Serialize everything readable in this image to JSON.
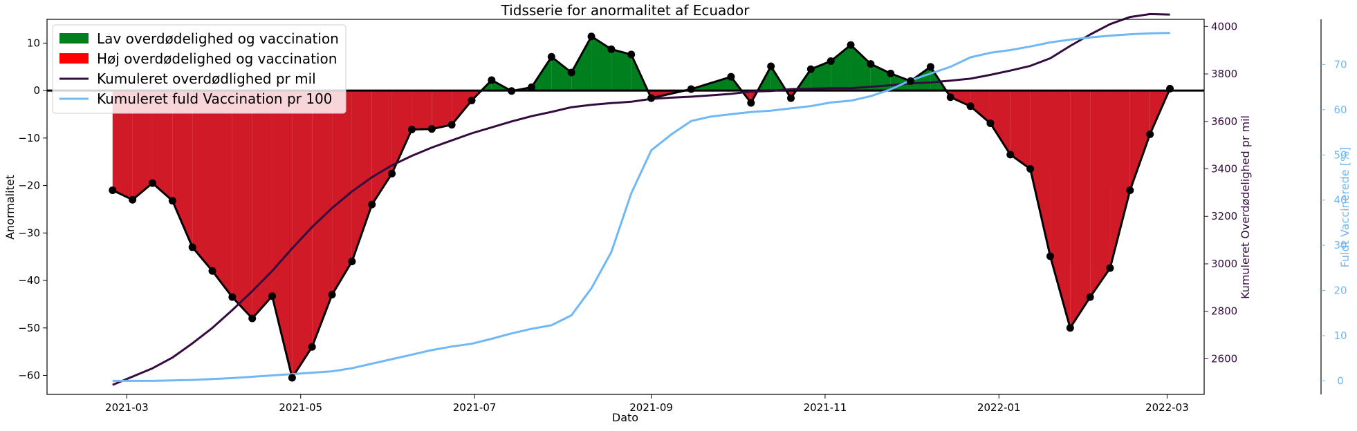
{
  "chart_data": {
    "type": "area",
    "title": "Tidsserie for anormalitet af Ecuador",
    "xlabel": "Dato",
    "ylabel": "Anormalitet",
    "ylabel_right1": "Kumuleret Overdødelighed pr mil",
    "ylabel_right2": "Fuldt Vaccinerede [%]",
    "xlim": [
      "2021-02-01",
      "2022-03-14"
    ],
    "ylim": [
      -64,
      15
    ],
    "ylim_right1": [
      2450,
      4030
    ],
    "ylim_right2": [
      -3,
      80
    ],
    "xticks": [
      "2021-03",
      "2021-05",
      "2021-07",
      "2021-09",
      "2021-11",
      "2022-01",
      "2022-03"
    ],
    "xticks_dates": [
      "2021-03-01",
      "2021-05-01",
      "2021-07-01",
      "2021-09-01",
      "2021-11-01",
      "2022-01-01",
      "2022-03-01"
    ],
    "yticks_left": [
      10,
      0,
      -10,
      -20,
      -30,
      -40,
      -50,
      -60
    ],
    "yticks_left_labels": [
      "10",
      "0",
      "−10",
      "−20",
      "−30",
      "−40",
      "−50",
      "−60"
    ],
    "yticks_right1": [
      4000,
      3800,
      3600,
      3400,
      3200,
      3000,
      2800,
      2600
    ],
    "yticks_right2": [
      0,
      10,
      20,
      30,
      40,
      50,
      60,
      70
    ],
    "legend_position": "top-left",
    "legend": [
      {
        "label": "Lav overdødelighed og vaccination",
        "kind": "patch",
        "color": "#007f1f"
      },
      {
        "label": "Høj overdødelighed og vaccination",
        "kind": "patch",
        "color": "#ff0000"
      },
      {
        "label": "Kumuleret overdødlighed pr mil",
        "kind": "line",
        "color": "#330b3f"
      },
      {
        "label": "Kumuleret fuld Vaccination pr 100",
        "kind": "line",
        "color": "#6fb7f7"
      }
    ],
    "colors": {
      "positive_fill": "#007f1f",
      "negative_fill": "#d11a27",
      "anomaly_line": "#000000",
      "cumulative_excess": "#330b3f",
      "vaccination": "#6fb7f7",
      "right2_axis_text": "#6fb7f7",
      "right1_axis_text": "#330b3f"
    },
    "series": [
      {
        "name": "Anormalitet",
        "axis": "left",
        "x": [
          "2021-02-24",
          "2021-03-03",
          "2021-03-10",
          "2021-03-17",
          "2021-03-24",
          "2021-03-31",
          "2021-04-07",
          "2021-04-14",
          "2021-04-21",
          "2021-04-28",
          "2021-05-05",
          "2021-05-12",
          "2021-05-19",
          "2021-05-26",
          "2021-06-02",
          "2021-06-09",
          "2021-06-16",
          "2021-06-23",
          "2021-06-30",
          "2021-07-07",
          "2021-07-14",
          "2021-07-21",
          "2021-07-28",
          "2021-08-04",
          "2021-08-11",
          "2021-08-18",
          "2021-08-25",
          "2021-09-01",
          "2021-09-08",
          "2021-09-15",
          "2021-09-22",
          "2021-09-29",
          "2021-10-06",
          "2021-10-13",
          "2021-10-20",
          "2021-10-27",
          "2021-11-03",
          "2021-11-10",
          "2021-11-17",
          "2021-11-24",
          "2021-12-01",
          "2021-12-08",
          "2021-12-15",
          "2021-12-22",
          "2021-12-29",
          "2022-01-05",
          "2022-01-12",
          "2022-01-19",
          "2022-01-26",
          "2022-02-02",
          "2022-02-09",
          "2022-02-16",
          "2022-02-23",
          "2022-03-02"
        ],
        "y": [
          -21,
          -23,
          -19.5,
          -23.2,
          -33,
          -38,
          -43.5,
          -48,
          -43.3,
          -60.5,
          -54,
          -43,
          -36,
          -24,
          -17.5,
          -8.2,
          -8.1,
          -7.2,
          -2.1,
          2.2,
          -0.1,
          0.7,
          7.1,
          3.8,
          11.4,
          8.7,
          7.6,
          -1.6,
          null,
          0.3,
          null,
          2.9,
          -2.6,
          5.1,
          -1.6,
          4.5,
          6.2,
          9.6,
          5.6,
          3.6,
          2,
          5,
          -1.4,
          -3.3,
          -6.9,
          -13.5,
          -16.5,
          -34.9,
          -50,
          -43.5,
          -37.4,
          -21,
          -9.2,
          0.4
        ]
      },
      {
        "name": "Kumuleret overdødlighed pr mil",
        "axis": "right1",
        "x": [
          "2021-02-24",
          "2021-03-03",
          "2021-03-10",
          "2021-03-17",
          "2021-03-24",
          "2021-03-31",
          "2021-04-07",
          "2021-04-14",
          "2021-04-21",
          "2021-04-28",
          "2021-05-05",
          "2021-05-12",
          "2021-05-19",
          "2021-05-26",
          "2021-06-02",
          "2021-06-09",
          "2021-06-16",
          "2021-06-23",
          "2021-06-30",
          "2021-07-07",
          "2021-07-14",
          "2021-07-21",
          "2021-07-28",
          "2021-08-04",
          "2021-08-11",
          "2021-08-18",
          "2021-08-25",
          "2021-09-01",
          "2021-09-08",
          "2021-09-15",
          "2021-09-22",
          "2021-09-29",
          "2021-10-06",
          "2021-10-13",
          "2021-10-20",
          "2021-10-27",
          "2021-11-03",
          "2021-11-10",
          "2021-11-17",
          "2021-11-24",
          "2021-12-01",
          "2021-12-08",
          "2021-12-15",
          "2021-12-22",
          "2021-12-29",
          "2022-01-05",
          "2022-01-12",
          "2022-01-19",
          "2022-01-26",
          "2022-02-02",
          "2022-02-09",
          "2022-02-16",
          "2022-02-23",
          "2022-03-02"
        ],
        "y": [
          2490,
          2525,
          2560,
          2605,
          2665,
          2730,
          2805,
          2885,
          2970,
          3065,
          3155,
          3235,
          3305,
          3365,
          3415,
          3455,
          3490,
          3520,
          3550,
          3575,
          3600,
          3622,
          3640,
          3660,
          3670,
          3677,
          3683,
          3695,
          3700,
          3704,
          3710,
          3716,
          3726,
          3728,
          3736,
          3738,
          3740,
          3740,
          3746,
          3752,
          3760,
          3764,
          3772,
          3780,
          3796,
          3814,
          3834,
          3866,
          3918,
          3966,
          4010,
          4040,
          4052,
          4050
        ]
      },
      {
        "name": "Kumuleret fuld Vaccination pr 100",
        "axis": "right2",
        "x": [
          "2021-02-24",
          "2021-03-03",
          "2021-03-10",
          "2021-03-17",
          "2021-03-24",
          "2021-03-31",
          "2021-04-07",
          "2021-04-14",
          "2021-04-21",
          "2021-04-28",
          "2021-05-05",
          "2021-05-12",
          "2021-05-19",
          "2021-05-26",
          "2021-06-02",
          "2021-06-09",
          "2021-06-16",
          "2021-06-23",
          "2021-06-30",
          "2021-07-07",
          "2021-07-14",
          "2021-07-21",
          "2021-07-28",
          "2021-08-04",
          "2021-08-11",
          "2021-08-18",
          "2021-08-25",
          "2021-09-01",
          "2021-09-08",
          "2021-09-15",
          "2021-09-22",
          "2021-09-29",
          "2021-10-06",
          "2021-10-13",
          "2021-10-20",
          "2021-10-27",
          "2021-11-03",
          "2021-11-10",
          "2021-11-17",
          "2021-11-24",
          "2021-12-01",
          "2021-12-08",
          "2021-12-15",
          "2021-12-22",
          "2021-12-29",
          "2022-01-05",
          "2022-01-12",
          "2022-01-19",
          "2022-01-26",
          "2022-02-02",
          "2022-02-09",
          "2022-02-16",
          "2022-02-23",
          "2022-03-02"
        ],
        "y": [
          0,
          0,
          0,
          0.1,
          0.2,
          0.4,
          0.6,
          0.9,
          1.2,
          1.5,
          1.8,
          2.1,
          2.8,
          3.8,
          4.8,
          5.8,
          6.8,
          7.6,
          8.2,
          9.3,
          10.5,
          11.5,
          12.3,
          14.5,
          20.5,
          28.5,
          41.5,
          51,
          54.5,
          57.5,
          58.5,
          59,
          59.5,
          59.8,
          60.3,
          60.8,
          61.6,
          62,
          63,
          64.5,
          66.5,
          68,
          69.5,
          71.6,
          72.6,
          73.2,
          74,
          74.9,
          75.5,
          76,
          76.4,
          76.7,
          76.9,
          77
        ]
      }
    ]
  }
}
